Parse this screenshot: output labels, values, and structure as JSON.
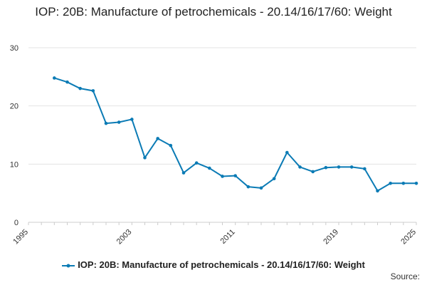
{
  "chart_data": {
    "type": "line",
    "title": "IOP: 20B: Manufacture of petrochemicals - 20.14/16/17/60: Weight",
    "xlabel": "",
    "ylabel": "",
    "xlim": [
      1995,
      2025
    ],
    "ylim": [
      0,
      30
    ],
    "x_ticks": [
      "1995",
      "2003",
      "2011",
      "2019",
      "2025"
    ],
    "y_ticks": [
      "0",
      "10",
      "20",
      "30"
    ],
    "grid": true,
    "legend_position": "bottom",
    "series": [
      {
        "name": "IOP: 20B: Manufacture of petrochemicals - 20.14/16/17/60: Weight",
        "color": "#0b7bb5",
        "x": [
          1997,
          1998,
          1999,
          2000,
          2001,
          2002,
          2003,
          2004,
          2005,
          2006,
          2007,
          2008,
          2009,
          2010,
          2011,
          2012,
          2013,
          2014,
          2015,
          2016,
          2017,
          2018,
          2019,
          2020,
          2021,
          2022,
          2023,
          2024,
          2025
        ],
        "values": [
          24.8,
          24.1,
          23.0,
          22.6,
          17.0,
          17.2,
          17.7,
          11.1,
          14.4,
          13.2,
          8.5,
          10.2,
          9.3,
          7.9,
          8.0,
          6.1,
          5.9,
          7.5,
          12.0,
          9.5,
          8.7,
          9.4,
          9.5,
          9.5,
          9.2,
          5.4,
          6.7,
          6.7,
          6.7
        ]
      }
    ]
  },
  "source_label": "Source:"
}
